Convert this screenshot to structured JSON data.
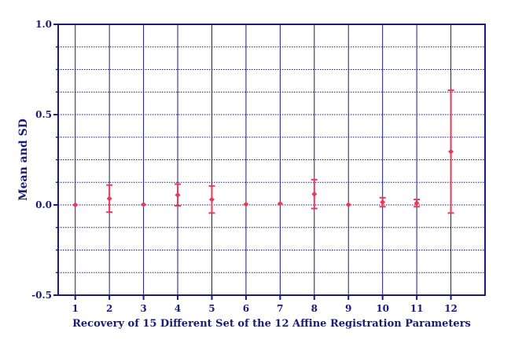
{
  "chart_data": {
    "type": "scatter",
    "title": "",
    "xlabel": "Recovery of 15 Different Set of the 12 Affine Registration Parameters",
    "ylabel": "Mean and SD",
    "x_ticks": [
      "1",
      "2",
      "3",
      "4",
      "5",
      "6",
      "7",
      "8",
      "9",
      "10",
      "11",
      "12"
    ],
    "y_ticks": [
      "1.0",
      "0.5",
      "0.0",
      "-0.5"
    ],
    "ylim": [
      -0.5,
      1.0
    ],
    "grid": true,
    "error_bars": true,
    "colors": {
      "axis": "#1a1a7a",
      "grid": "#1a1a7a",
      "marker": "#e8395a"
    },
    "series": [
      {
        "x": [
          1,
          2,
          3,
          4,
          5,
          6,
          7,
          8,
          9,
          10,
          11,
          12
        ],
        "mean": [
          0.0,
          0.035,
          0.002,
          0.055,
          0.03,
          0.003,
          0.007,
          0.06,
          0.001,
          0.015,
          0.01,
          0.295
        ],
        "sd": [
          0.002,
          0.075,
          0.003,
          0.06,
          0.075,
          0.004,
          0.006,
          0.08,
          0.002,
          0.025,
          0.02,
          0.34
        ]
      }
    ]
  }
}
